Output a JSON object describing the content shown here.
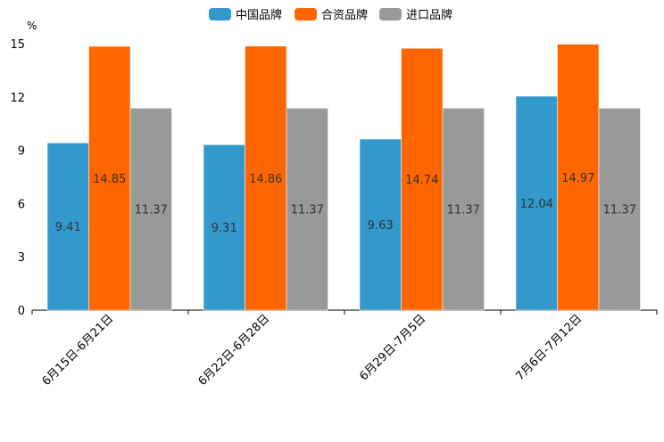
{
  "chart_data": {
    "type": "bar",
    "title": "",
    "unit_label": "%",
    "xlabel": "",
    "ylabel": "%",
    "ylim": [
      0,
      15
    ],
    "yticks": [
      "0",
      "3",
      "6",
      "9",
      "12",
      "15"
    ],
    "categories": [
      "6月15日-6月21日",
      "6月22日-6月28日",
      "6月29日-7月5日",
      "7月6日-7月12日"
    ],
    "series": [
      {
        "name": "中国品牌",
        "color": "#3399cc",
        "values": [
          9.41,
          9.31,
          9.63,
          12.04
        ],
        "labels": [
          "9.41",
          "9.31",
          "9.63",
          "12.04"
        ]
      },
      {
        "name": "合资品牌",
        "color": "#ff6600",
        "values": [
          14.85,
          14.86,
          14.74,
          14.97
        ],
        "labels": [
          "14.85",
          "14.86",
          "14.74",
          "14.97"
        ]
      },
      {
        "name": "进口品牌",
        "color": "#999999",
        "values": [
          11.37,
          11.37,
          11.37,
          11.37
        ],
        "labels": [
          "11.37",
          "11.37",
          "11.37",
          "11.37"
        ]
      }
    ],
    "legend_position": "top-center",
    "grid": false
  }
}
